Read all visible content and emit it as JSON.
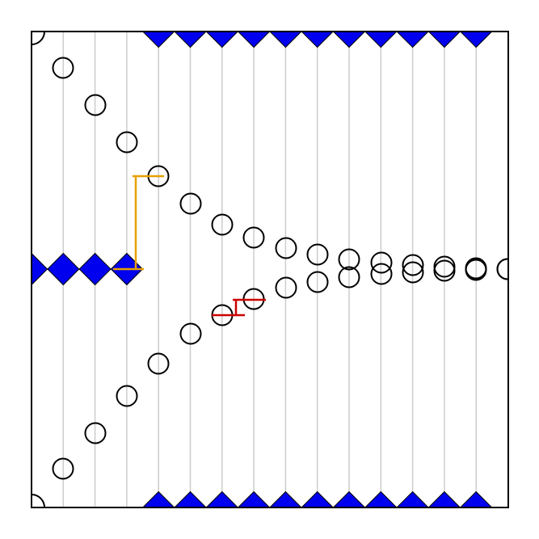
{
  "colors": {
    "background": "#ffffff",
    "frame": "#000000",
    "gridline": "#cccccc",
    "diamond_fill": "#0000ee",
    "circle_stroke": "#000000",
    "orange_marker": "#e6a000",
    "red_marker": "#cc0000"
  },
  "diagram": {
    "description_free": true,
    "icons": [
      "diamond-icon",
      "circle-marker-icon",
      "corner-arc-icon"
    ]
  }
}
